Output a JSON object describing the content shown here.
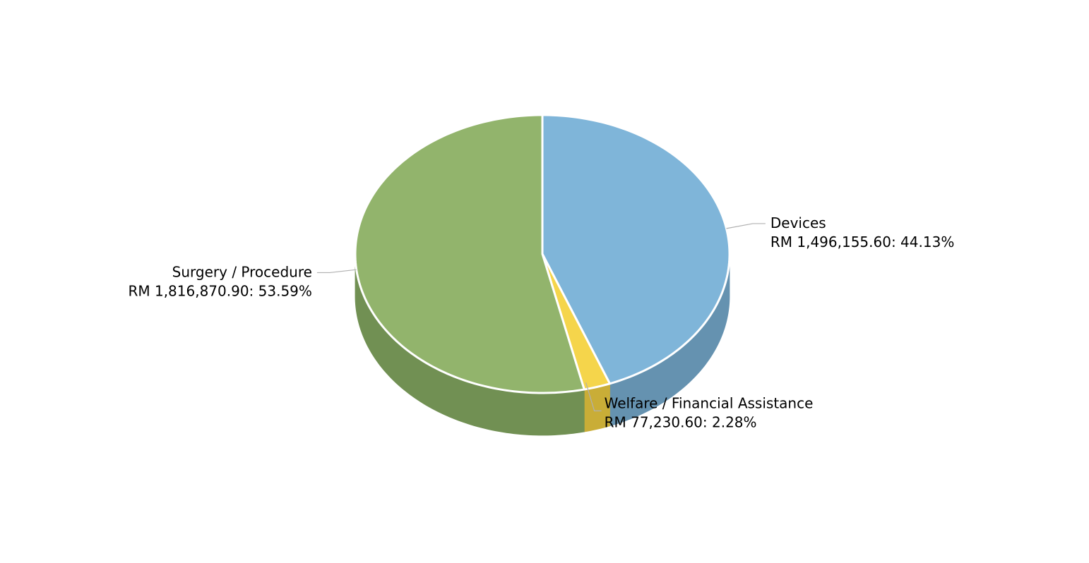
{
  "chart_data": {
    "type": "pie",
    "style": "3d",
    "currency_prefix": "RM",
    "slices": [
      {
        "name": "Devices",
        "value": 1496155.6,
        "value_text": "RM 1,496,155.60",
        "percent": 44.13,
        "percent_text": "44.13%",
        "label_line1": "Devices",
        "label_line2": "RM 1,496,155.60: 44.13%",
        "color": "#7fb5d9",
        "side_color": "#6592b0"
      },
      {
        "name": "Welfare / Financial Assistance",
        "value": 77230.6,
        "value_text": "RM 77,230.60",
        "percent": 2.28,
        "percent_text": "2.28%",
        "label_line1": "Welfare / Financial Assistance",
        "label_line2": "RM 77,230.60: 2.28%",
        "color": "#f5d54b",
        "side_color": "#c9ad37"
      },
      {
        "name": "Surgery / Procedure",
        "value": 1816870.9,
        "value_text": "RM 1,816,870.90",
        "percent": 53.59,
        "percent_text": "53.59%",
        "label_line1": "Surgery / Procedure",
        "label_line2": "RM 1,816,870.90: 53.59%",
        "color": "#92b46c",
        "side_color": "#719053"
      }
    ],
    "slice_border_color": "#ffffff",
    "leader_line_color": "#b0b0b0",
    "legend": "none",
    "title": ""
  }
}
